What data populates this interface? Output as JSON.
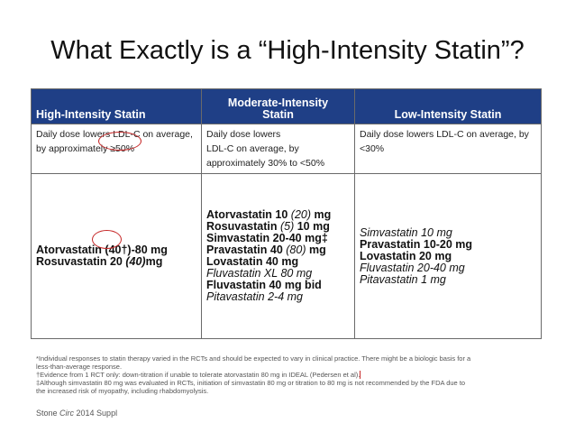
{
  "title": "What Exactly is a “High-Intensity Statin”?",
  "table": {
    "headers": [
      "High-Intensity Statin",
      "Moderate-Intensity Statin",
      "Low-Intensity Statin"
    ],
    "descriptions": [
      "Daily dose lowers LDL-C on average, by approximately ≥50%",
      [
        "Daily dose lowers",
        "LDL-C on average, by",
        "approximately 30% to <50%"
      ],
      "Daily dose lowers LDL-C on average, by <30%"
    ],
    "high": [
      {
        "name": "Atorvastatin",
        "paren": "(40†)",
        "dose": "-80 mg"
      },
      {
        "name": "Rosuvastatin 20",
        "paren": "(40)",
        "dose": "mg"
      }
    ],
    "moderate": [
      {
        "pre": "Atorvastatin 10 ",
        "paren": "(20)",
        "post": " mg",
        "italic": false
      },
      {
        "pre": "Rosuvastatin ",
        "paren": "(5)",
        "post": " 10 mg",
        "italic": false
      },
      {
        "pre": "Simvastatin 20-40 mg‡",
        "paren": "",
        "post": "",
        "italic": false
      },
      {
        "pre": "Pravastatin 40 ",
        "paren": "(80)",
        "post": " mg",
        "italic": false
      },
      {
        "pre": "Lovastatin 40 mg",
        "paren": "",
        "post": "",
        "italic": false
      },
      {
        "pre": "Fluvastatin XL 80 mg",
        "paren": "",
        "post": "",
        "italic": true
      },
      {
        "pre": "Fluvastatin 40 mg bid",
        "paren": "",
        "post": "",
        "italic": false
      },
      {
        "pre": "Pitavastatin 2-4 mg",
        "paren": "",
        "post": "",
        "italic": true
      }
    ],
    "low": [
      {
        "text": "Simvastatin 10 mg",
        "italic": true
      },
      {
        "text": "Pravastatin 10-20 mg",
        "italic": false
      },
      {
        "text": "Lovastatin 20 mg",
        "italic": false
      },
      {
        "text": "Fluvastatin 20-40 mg",
        "italic": true
      },
      {
        "text": "Pitavastatin 1 mg",
        "italic": true
      }
    ]
  },
  "footnotes": [
    "*Individual responses to statin therapy varied in the RCTs and should be expected to vary in clinical practice. There might be a biologic basis for a",
    "less-than-average response.",
    "†Evidence from 1 RCT only: down-titration if unable to tolerate atorvastatin 80 mg in IDEAL (Pedersen et al).",
    "‡Although simvastatin 80 mg was evaluated in RCTs, initiation of simvastatin 80 mg or titration to 80 mg is not recommended by the FDA due to",
    "the increased risk of myopathy, including rhabdomyolysis."
  ],
  "source": [
    "Stone ",
    "Circ",
    " 2014 Suppl"
  ],
  "colors": {
    "header_bg": "#1f3f86",
    "annotation": "#c62828"
  }
}
